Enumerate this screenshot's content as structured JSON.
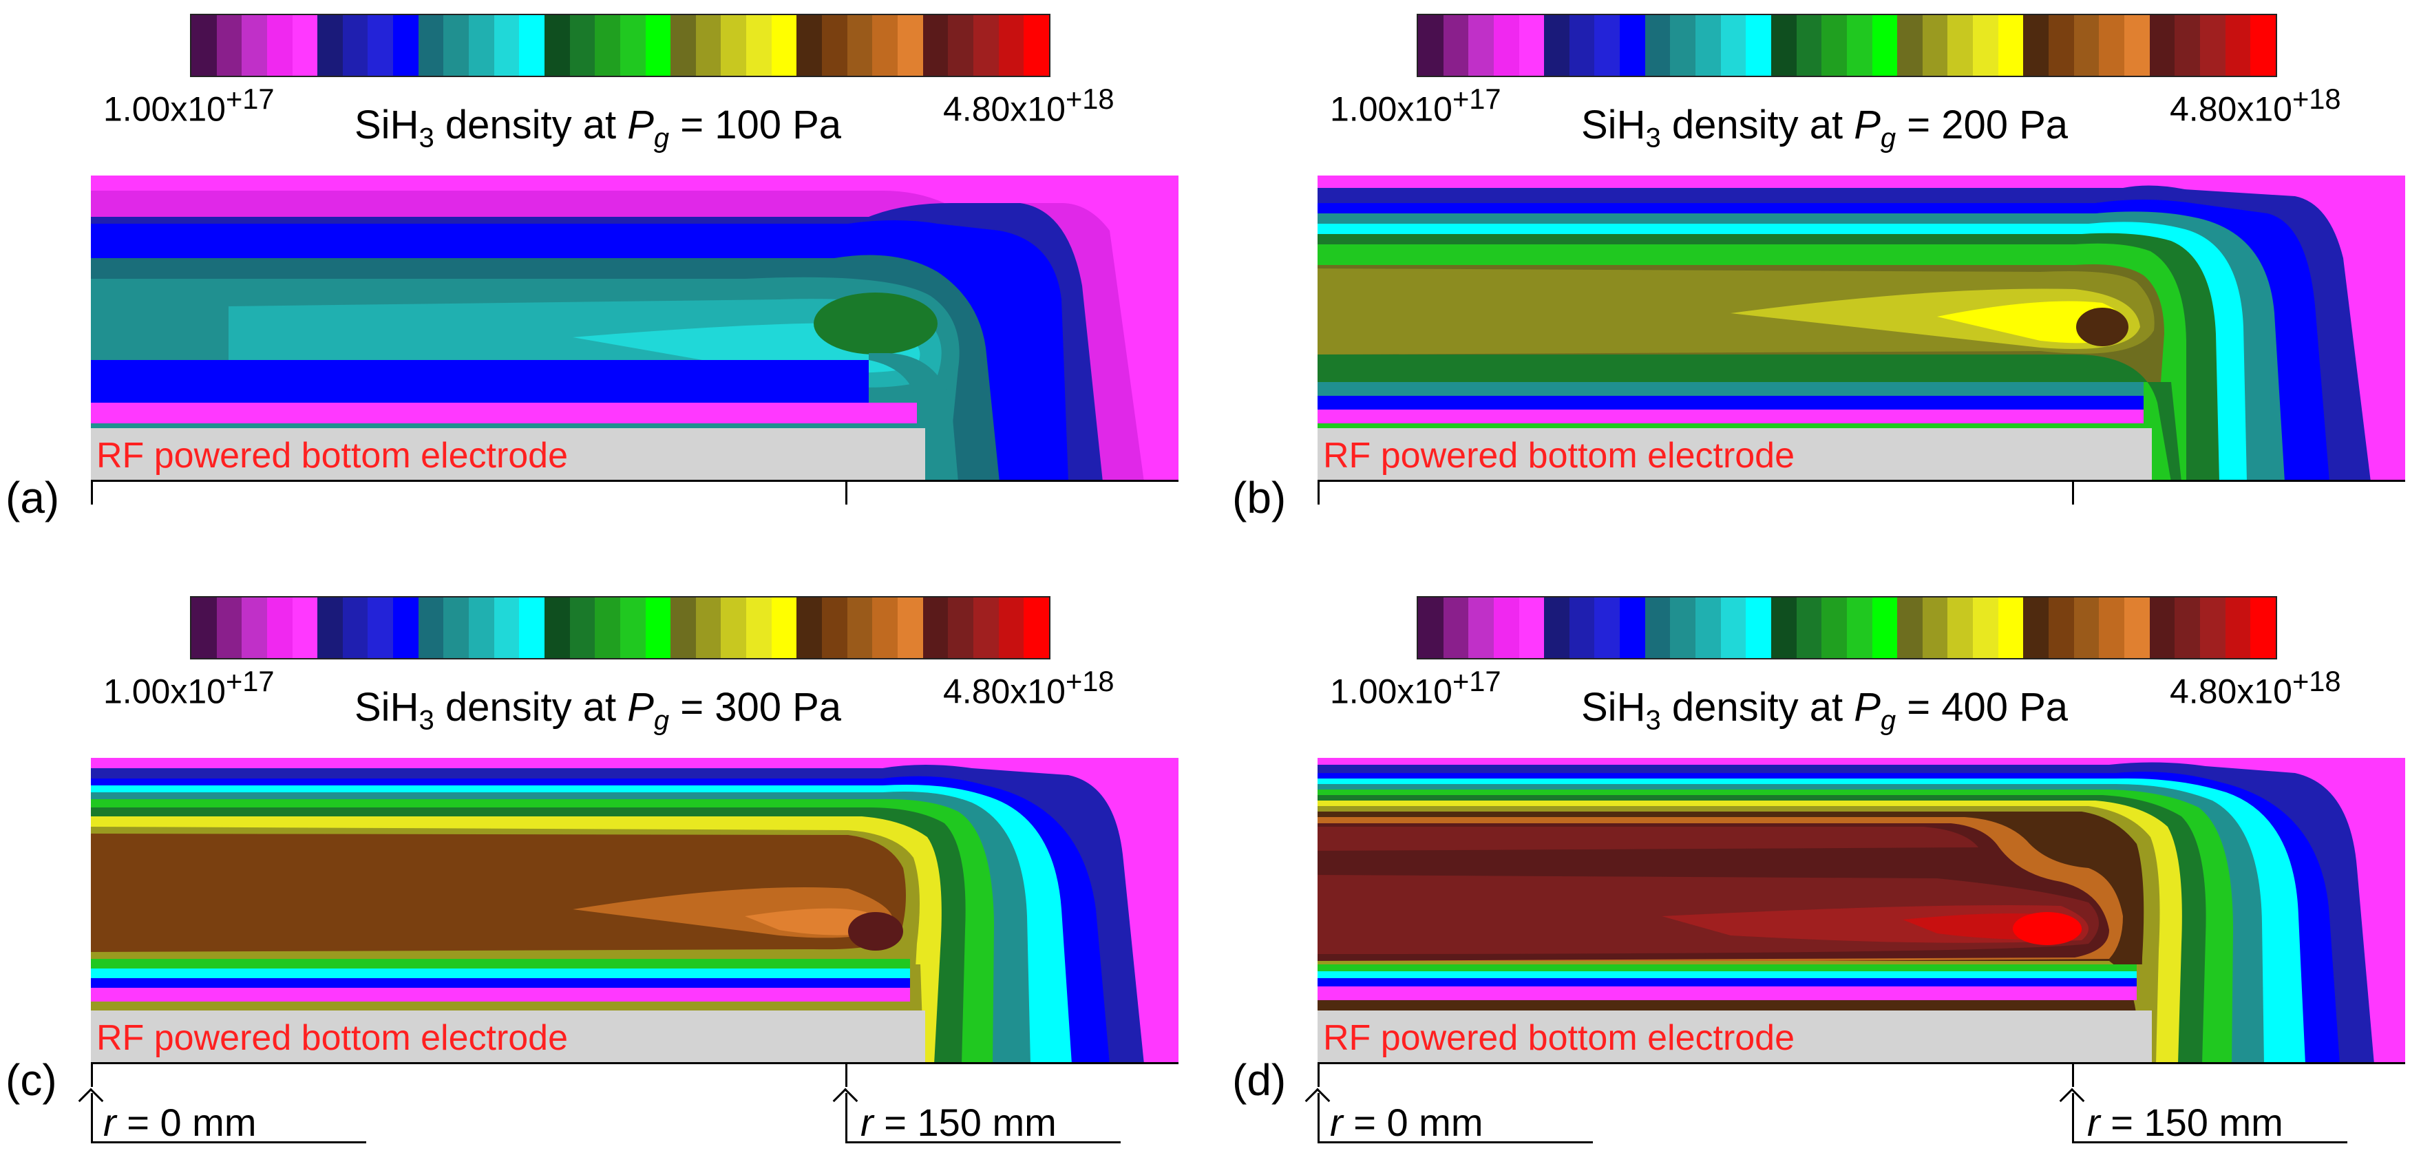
{
  "colorbar": {
    "min_label": "1.00x10",
    "min_exp": "+17",
    "max_label": "4.80x10",
    "max_exp": "+18",
    "colors": [
      "#4a0f4f",
      "#8a1f8c",
      "#c030c8",
      "#f028f0",
      "#ff38ff",
      "#1a1a7a",
      "#1f1fb0",
      "#2323d8",
      "#0000ff",
      "#1a6e7a",
      "#209090",
      "#20b0b0",
      "#20d8d8",
      "#00ffff",
      "#0f4f1f",
      "#1a7a2a",
      "#20a020",
      "#20c820",
      "#00ff00",
      "#6e6e1f",
      "#9a9a20",
      "#c8c820",
      "#e8e820",
      "#ffff00",
      "#4f2a0f",
      "#7a4010",
      "#9a5a1a",
      "#c06a20",
      "#e08030",
      "#5a1a1a",
      "#7a1f1f",
      "#a01f1f",
      "#c81010",
      "#ff0000"
    ]
  },
  "panels": [
    {
      "id": "a",
      "label": "(a)",
      "title_prefix": "SiH",
      "title_sub": "3",
      "title_mid": " density at ",
      "title_var": "P",
      "title_var_sub": "g",
      "title_suffix": " = 100 Pa"
    },
    {
      "id": "b",
      "label": "(b)",
      "title_prefix": "SiH",
      "title_sub": "3",
      "title_mid": " density at ",
      "title_var": "P",
      "title_var_sub": "g",
      "title_suffix": " = 200 Pa"
    },
    {
      "id": "c",
      "label": "(c)",
      "title_prefix": "SiH",
      "title_sub": "3",
      "title_mid": " density at ",
      "title_var": "P",
      "title_var_sub": "g",
      "title_suffix": " = 300 Pa"
    },
    {
      "id": "d",
      "label": "(d)",
      "title_prefix": "SiH",
      "title_sub": "3",
      "title_mid": " density at ",
      "title_var": "P",
      "title_var_sub": "g",
      "title_suffix": " = 400 Pa"
    }
  ],
  "electrode_label": "RF powered bottom electrode",
  "r_marks": {
    "r0": {
      "var": "r",
      "text": " = 0 mm"
    },
    "r150": {
      "var": "r",
      "text": " = 150 mm"
    }
  }
}
